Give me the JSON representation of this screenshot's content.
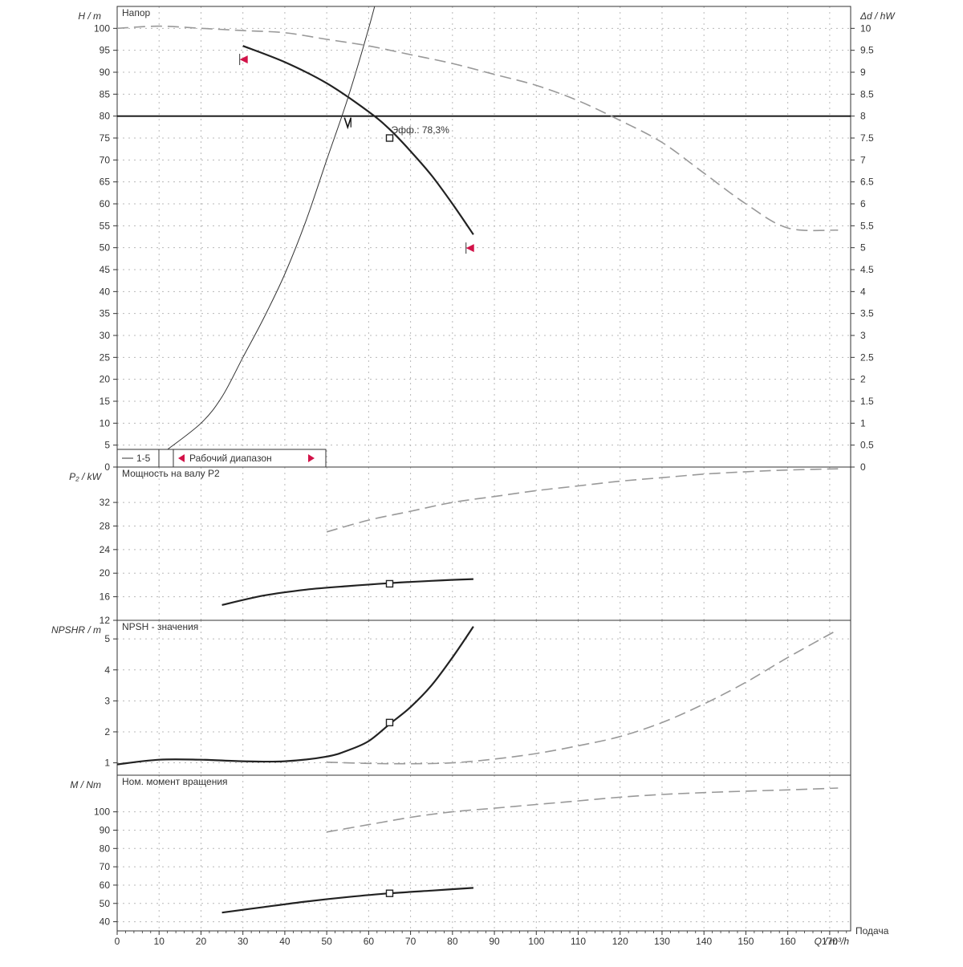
{
  "chart_data": {
    "type": "line",
    "x_axis": {
      "label": "Q / m³/h",
      "caption": "Подача",
      "range": [
        0,
        175
      ],
      "ticks": [
        0,
        10,
        20,
        30,
        40,
        50,
        60,
        70,
        80,
        90,
        100,
        110,
        120,
        130,
        140,
        150,
        160,
        170
      ]
    },
    "panels": [
      {
        "id": "head",
        "title": "Напор",
        "ylabel": "H / m",
        "ylim": [
          0,
          105
        ],
        "yticks": [
          0,
          5,
          10,
          15,
          20,
          25,
          30,
          35,
          40,
          45,
          50,
          55,
          60,
          65,
          70,
          75,
          80,
          85,
          90,
          95,
          100
        ],
        "ylabel_right": "Δd / hW",
        "ylim_right": [
          0,
          10.5
        ],
        "yticks_right": [
          {
            "v": 0,
            "t": "0"
          },
          {
            "v": 0.5,
            "t": "0.5"
          },
          {
            "v": 1,
            "t": "1"
          },
          {
            "v": 1.5,
            "t": "1.5"
          },
          {
            "v": 2,
            "t": "2"
          },
          {
            "v": 2.5,
            "t": "2.5"
          },
          {
            "v": 3,
            "t": "3"
          },
          {
            "v": 3.5,
            "t": "3.5"
          },
          {
            "v": 4,
            "t": "4"
          },
          {
            "v": 4.5,
            "t": "4.5"
          },
          {
            "v": 5,
            "t": "5"
          },
          {
            "v": 5.5,
            "t": "5.5"
          },
          {
            "v": 6,
            "t": "6"
          },
          {
            "v": 6.5,
            "t": "6.5"
          },
          {
            "v": 7,
            "t": "7"
          },
          {
            "v": 7.5,
            "t": "7.5"
          },
          {
            "v": 8,
            "t": "8"
          },
          {
            "v": 8.5,
            "t": "8.5"
          },
          {
            "v": 9,
            "t": "9"
          },
          {
            "v": 9.5,
            "t": "9.5"
          },
          {
            "v": 10,
            "t": "10"
          }
        ],
        "series": [
          {
            "style": "main",
            "points": [
              [
                30,
                96
              ],
              [
                40,
                92.3
              ],
              [
                50,
                87.5
              ],
              [
                60,
                81
              ],
              [
                65,
                77
              ],
              [
                70,
                72
              ],
              [
                75,
                66.5
              ],
              [
                80,
                60
              ],
              [
                85,
                53
              ]
            ]
          },
          {
            "style": "thin",
            "points": [
              [
                12,
                4
              ],
              [
                20,
                10
              ],
              [
                25,
                16
              ],
              [
                30,
                25
              ],
              [
                35,
                34
              ],
              [
                40,
                44
              ],
              [
                45,
                56
              ],
              [
                50,
                70
              ],
              [
                55,
                84
              ],
              [
                60,
                100
              ],
              [
                65,
                118
              ]
            ]
          },
          {
            "style": "dash",
            "points": [
              [
                0,
                100
              ],
              [
                10,
                100.5
              ],
              [
                20,
                100
              ],
              [
                30,
                99.5
              ],
              [
                40,
                99
              ],
              [
                50,
                97.5
              ],
              [
                60,
                96
              ],
              [
                70,
                94
              ],
              [
                80,
                92
              ],
              [
                90,
                89.5
              ],
              [
                100,
                87
              ],
              [
                110,
                83.5
              ],
              [
                120,
                79
              ],
              [
                130,
                74
              ],
              [
                140,
                67
              ],
              [
                150,
                60
              ],
              [
                160,
                54.5
              ],
              [
                172,
                54
              ]
            ]
          }
        ],
        "reference_line_y": 80,
        "operating_point": {
          "x": 55,
          "y": 80
        },
        "duty_point": {
          "x": 65,
          "y": 75
        },
        "annotation": "Эфф.: 78,3%",
        "range_markers": [
          {
            "x": 30,
            "y": 92
          },
          {
            "x": 84,
            "y": 49
          }
        ],
        "legend": {
          "items": [
            "1-5",
            "Рабочий диапазон"
          ]
        }
      },
      {
        "id": "power",
        "title": "Мощность на валу P2",
        "ylabel": "P₂ / kW",
        "ylim": [
          12,
          38
        ],
        "yticks": [
          12,
          16,
          20,
          24,
          28,
          32
        ],
        "series": [
          {
            "style": "main",
            "points": [
              [
                25,
                14.6
              ],
              [
                35,
                16.2
              ],
              [
                45,
                17.2
              ],
              [
                55,
                17.8
              ],
              [
                65,
                18.3
              ],
              [
                75,
                18.7
              ],
              [
                85,
                19.0
              ]
            ]
          },
          {
            "style": "dash",
            "points": [
              [
                50,
                27
              ],
              [
                60,
                29
              ],
              [
                70,
                30.5
              ],
              [
                80,
                32
              ],
              [
                90,
                33
              ],
              [
                100,
                34
              ],
              [
                110,
                34.8
              ],
              [
                120,
                35.6
              ],
              [
                130,
                36.2
              ],
              [
                140,
                36.8
              ],
              [
                150,
                37.2
              ],
              [
                160,
                37.5
              ],
              [
                172,
                37.7
              ]
            ]
          }
        ],
        "duty_point": {
          "x": 65,
          "y": 18.2
        }
      },
      {
        "id": "npsh",
        "title": "NPSH - значения",
        "ylabel": "NPSHR / m",
        "ylim": [
          0.6,
          5.6
        ],
        "yticks": [
          1,
          2,
          3,
          4,
          5
        ],
        "series": [
          {
            "style": "main",
            "points": [
              [
                0,
                0.95
              ],
              [
                10,
                1.1
              ],
              [
                20,
                1.1
              ],
              [
                30,
                1.05
              ],
              [
                40,
                1.05
              ],
              [
                50,
                1.2
              ],
              [
                55,
                1.4
              ],
              [
                60,
                1.7
              ],
              [
                65,
                2.25
              ],
              [
                70,
                2.8
              ],
              [
                75,
                3.5
              ],
              [
                80,
                4.4
              ],
              [
                85,
                5.4
              ]
            ]
          },
          {
            "style": "dash",
            "points": [
              [
                50,
                1.02
              ],
              [
                60,
                0.98
              ],
              [
                70,
                0.97
              ],
              [
                80,
                1.0
              ],
              [
                90,
                1.12
              ],
              [
                100,
                1.3
              ],
              [
                110,
                1.55
              ],
              [
                120,
                1.85
              ],
              [
                130,
                2.3
              ],
              [
                140,
                2.9
              ],
              [
                150,
                3.6
              ],
              [
                160,
                4.4
              ],
              [
                172,
                5.3
              ]
            ]
          }
        ],
        "duty_point": {
          "x": 65,
          "y": 2.3
        }
      },
      {
        "id": "torque",
        "title": "Ном. момент вращения",
        "ylabel": "M / Nm",
        "ylim": [
          35,
          120
        ],
        "yticks": [
          40,
          50,
          60,
          70,
          80,
          90,
          100
        ],
        "series": [
          {
            "style": "main",
            "points": [
              [
                25,
                45
              ],
              [
                35,
                48
              ],
              [
                45,
                51
              ],
              [
                55,
                53.5
              ],
              [
                65,
                55.5
              ],
              [
                75,
                57
              ],
              [
                85,
                58.5
              ]
            ]
          },
          {
            "style": "dash",
            "points": [
              [
                50,
                89
              ],
              [
                60,
                93
              ],
              [
                70,
                97
              ],
              [
                80,
                100
              ],
              [
                90,
                102
              ],
              [
                100,
                104
              ],
              [
                110,
                106
              ],
              [
                120,
                108
              ],
              [
                130,
                109.5
              ],
              [
                140,
                110.5
              ],
              [
                150,
                111.3
              ],
              [
                160,
                112
              ],
              [
                172,
                113
              ]
            ]
          }
        ],
        "duty_point": {
          "x": 65,
          "y": 55.5
        }
      }
    ]
  }
}
